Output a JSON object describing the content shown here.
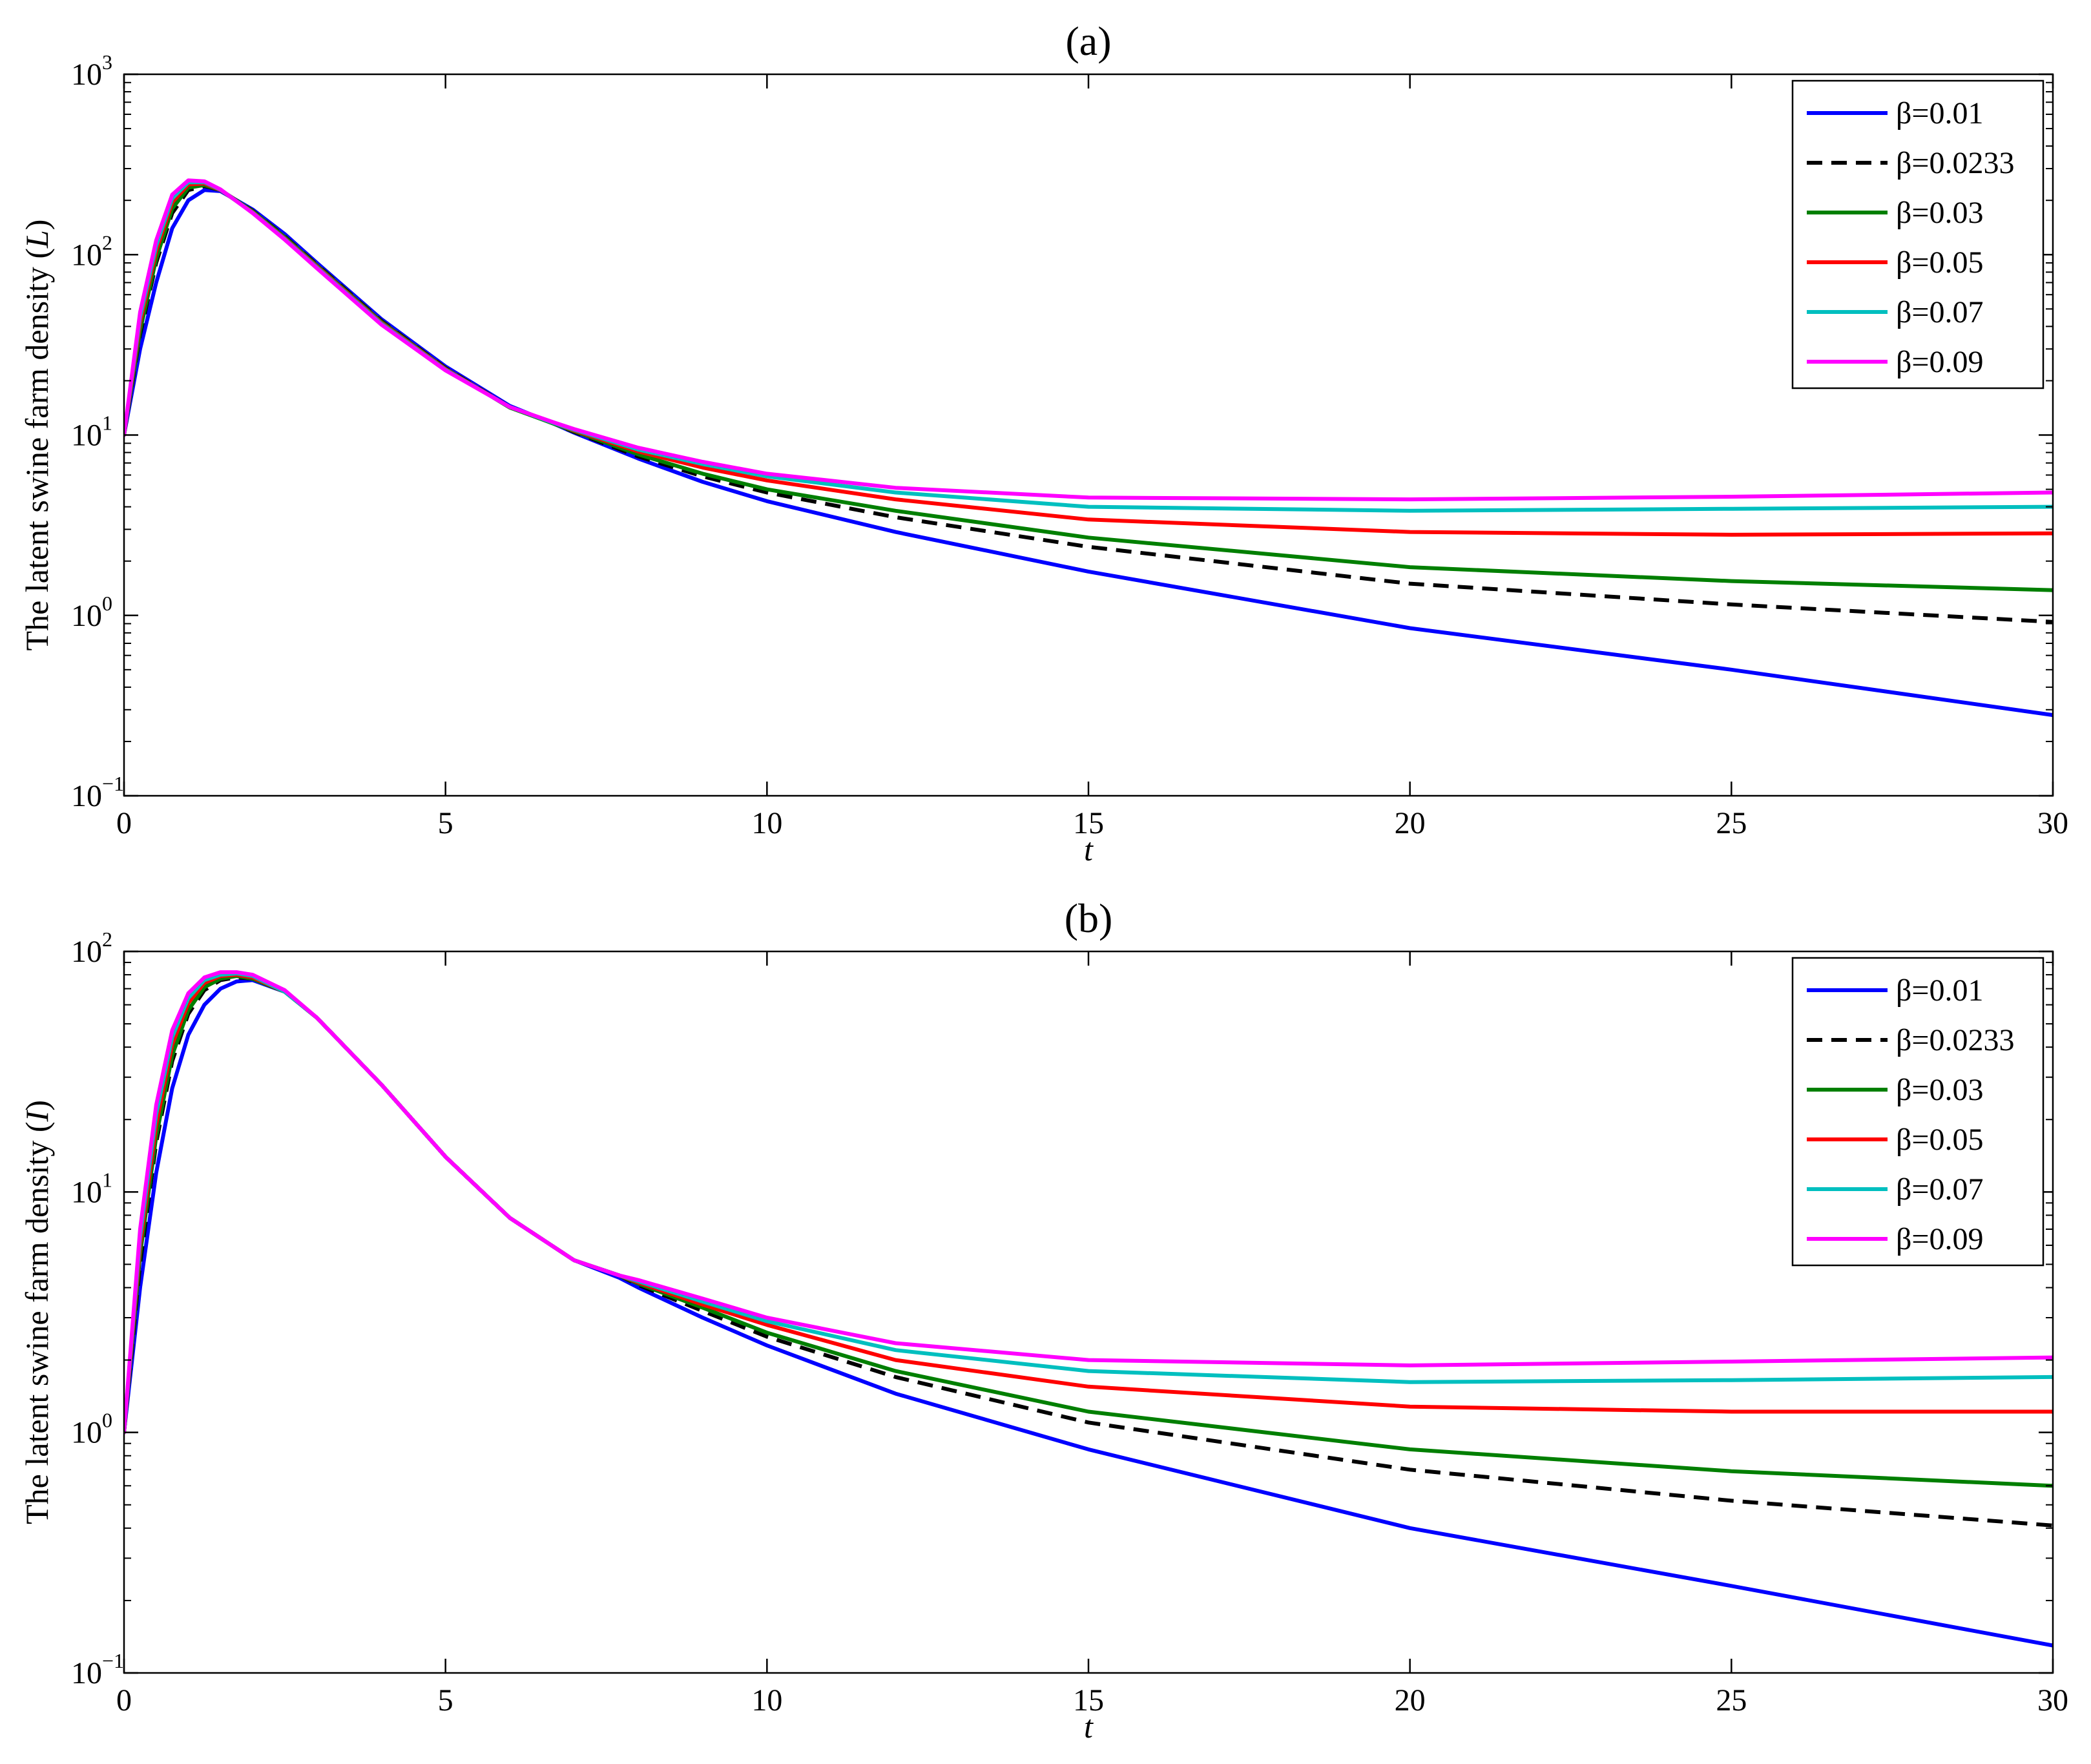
{
  "chart_data": [
    {
      "type": "line",
      "title": "(a)",
      "xlabel": "t",
      "ylabel_main": "The latent swine farm density (",
      "ylabel_var": "L",
      "ylabel_close": ")",
      "yscale": "log",
      "xlim": [
        0,
        30
      ],
      "ylim": [
        0.1,
        1000
      ],
      "xticks": [
        "0",
        "5",
        "10",
        "15",
        "20",
        "25",
        "30"
      ],
      "yticks": [
        {
          "base": "10",
          "exp": "−1"
        },
        {
          "base": "10",
          "exp": "0"
        },
        {
          "base": "10",
          "exp": "1"
        },
        {
          "base": "10",
          "exp": "2"
        },
        {
          "base": "10",
          "exp": "3"
        }
      ],
      "grid": false,
      "legend_position": "top-right",
      "series": [
        {
          "name": "β=0.01",
          "color": "#0000ff",
          "dash": "solid",
          "x": [
            0,
            0.25,
            0.5,
            0.75,
            1.0,
            1.25,
            1.5,
            2,
            2.5,
            3,
            4,
            5,
            6,
            6.7,
            7,
            8,
            9,
            10,
            12,
            15,
            20,
            25,
            30
          ],
          "y": [
            10,
            30,
            70,
            140,
            200,
            228,
            225,
            178,
            130,
            90,
            44,
            24,
            14.5,
            11.5,
            10.3,
            7.4,
            5.5,
            4.3,
            2.9,
            1.75,
            0.85,
            0.5,
            0.28
          ]
        },
        {
          "name": "β=0.0233",
          "color": "#000000",
          "dash": "dashed",
          "x": [
            0,
            0.25,
            0.5,
            0.75,
            1.0,
            1.25,
            1.5,
            2,
            2.5,
            3,
            4,
            5,
            6,
            6.7,
            7,
            8,
            9,
            10,
            12,
            15,
            20,
            25,
            30
          ],
          "y": [
            10,
            36,
            90,
            170,
            228,
            240,
            228,
            175,
            126,
            88,
            43,
            23.5,
            14.3,
            11.5,
            10.4,
            7.6,
            5.9,
            4.8,
            3.5,
            2.4,
            1.5,
            1.15,
            0.92
          ]
        },
        {
          "name": "β=0.03",
          "color": "#007f00",
          "dash": "solid",
          "x": [
            0,
            0.25,
            0.5,
            0.75,
            1.0,
            1.25,
            1.5,
            2,
            2.5,
            3,
            4,
            5,
            6,
            6.7,
            7,
            8,
            9,
            10,
            12,
            15,
            20,
            25,
            30
          ],
          "y": [
            10,
            38,
            95,
            180,
            235,
            243,
            228,
            174,
            125,
            87,
            42.5,
            23.3,
            14.2,
            11.5,
            10.5,
            7.8,
            6.1,
            5.0,
            3.8,
            2.7,
            1.85,
            1.55,
            1.38
          ]
        },
        {
          "name": "β=0.05",
          "color": "#ff0000",
          "dash": "solid",
          "x": [
            0,
            0.25,
            0.5,
            0.75,
            1.0,
            1.25,
            1.5,
            2,
            2.5,
            3,
            4,
            5,
            6,
            6.7,
            7,
            8,
            9,
            10,
            12,
            15,
            20,
            25,
            30
          ],
          "y": [
            10,
            42,
            105,
            195,
            245,
            248,
            228,
            172,
            123,
            86,
            42,
            23.2,
            14.3,
            11.6,
            10.6,
            8.1,
            6.6,
            5.6,
            4.4,
            3.4,
            2.9,
            2.8,
            2.85
          ]
        },
        {
          "name": "β=0.07",
          "color": "#00bfbf",
          "dash": "solid",
          "x": [
            0,
            0.25,
            0.5,
            0.75,
            1.0,
            1.25,
            1.5,
            2,
            2.5,
            3,
            4,
            5,
            6,
            6.7,
            7,
            8,
            9,
            10,
            12,
            15,
            20,
            25,
            30
          ],
          "y": [
            10,
            45,
            112,
            205,
            252,
            252,
            229,
            171,
            122,
            85,
            41.5,
            23,
            14.3,
            11.6,
            10.7,
            8.3,
            6.9,
            5.9,
            4.8,
            4.0,
            3.8,
            3.9,
            4.0
          ]
        },
        {
          "name": "β=0.09",
          "color": "#ff00ff",
          "dash": "solid",
          "x": [
            0,
            0.25,
            0.5,
            0.75,
            1.0,
            1.25,
            1.5,
            2,
            2.5,
            3,
            4,
            5,
            6,
            6.7,
            7,
            8,
            9,
            10,
            12,
            15,
            20,
            25,
            30
          ],
          "y": [
            10,
            48,
            120,
            215,
            258,
            255,
            230,
            170,
            121,
            84,
            41,
            22.8,
            14.3,
            11.7,
            10.8,
            8.5,
            7.1,
            6.1,
            5.1,
            4.5,
            4.4,
            4.55,
            4.8
          ]
        }
      ]
    },
    {
      "type": "line",
      "title": "(b)",
      "xlabel": "t",
      "ylabel_main": "The latent swine farm density (",
      "ylabel_var": "I",
      "ylabel_close": ")",
      "yscale": "log",
      "xlim": [
        0,
        30
      ],
      "ylim": [
        0.1,
        100
      ],
      "xticks": [
        "0",
        "5",
        "10",
        "15",
        "20",
        "25",
        "30"
      ],
      "yticks": [
        {
          "base": "10",
          "exp": "−1"
        },
        {
          "base": "10",
          "exp": "0"
        },
        {
          "base": "10",
          "exp": "1"
        },
        {
          "base": "10",
          "exp": "2"
        }
      ],
      "grid": false,
      "legend_position": "top-right",
      "series": [
        {
          "name": "β=0.01",
          "color": "#0000ff",
          "dash": "solid",
          "x": [
            0,
            0.25,
            0.5,
            0.75,
            1.0,
            1.25,
            1.5,
            1.75,
            2,
            2.5,
            3,
            4,
            5,
            6,
            7,
            7.7,
            8,
            9,
            10,
            12,
            15,
            20,
            25,
            30
          ],
          "y": [
            1,
            4,
            12,
            27,
            45,
            60,
            70,
            75,
            76,
            68,
            53,
            28,
            14,
            7.8,
            5.2,
            4.4,
            4.0,
            3.0,
            2.3,
            1.45,
            0.85,
            0.4,
            0.23,
            0.13
          ]
        },
        {
          "name": "β=0.0233",
          "color": "#000000",
          "dash": "dashed",
          "x": [
            0,
            0.25,
            0.5,
            0.75,
            1.0,
            1.25,
            1.5,
            1.75,
            2,
            2.5,
            3,
            4,
            5,
            6,
            7,
            7.7,
            8,
            9,
            10,
            12,
            15,
            20,
            25,
            30
          ],
          "y": [
            1,
            5,
            16,
            35,
            55,
            69,
            76,
            78,
            77,
            68,
            53,
            28,
            14,
            7.8,
            5.2,
            4.5,
            4.1,
            3.2,
            2.5,
            1.7,
            1.1,
            0.7,
            0.52,
            0.41
          ]
        },
        {
          "name": "β=0.03",
          "color": "#007f00",
          "dash": "solid",
          "x": [
            0,
            0.25,
            0.5,
            0.75,
            1.0,
            1.25,
            1.5,
            1.75,
            2,
            2.5,
            3,
            4,
            5,
            6,
            7,
            7.7,
            8,
            9,
            10,
            12,
            15,
            20,
            25,
            30
          ],
          "y": [
            1,
            5.5,
            17,
            37,
            57,
            71,
            77,
            79,
            77,
            68,
            53,
            28,
            14,
            7.8,
            5.2,
            4.5,
            4.15,
            3.3,
            2.6,
            1.8,
            1.22,
            0.85,
            0.69,
            0.6
          ]
        },
        {
          "name": "β=0.05",
          "color": "#ff0000",
          "dash": "solid",
          "x": [
            0,
            0.25,
            0.5,
            0.75,
            1.0,
            1.25,
            1.5,
            1.75,
            2,
            2.5,
            3,
            4,
            5,
            6,
            7,
            7.7,
            8,
            9,
            10,
            12,
            15,
            20,
            25,
            30
          ],
          "y": [
            1,
            6,
            19,
            41,
            61,
            74,
            79,
            80,
            78,
            68,
            53,
            28,
            14,
            7.8,
            5.2,
            4.5,
            4.2,
            3.4,
            2.8,
            2.0,
            1.55,
            1.28,
            1.22,
            1.22
          ]
        },
        {
          "name": "β=0.07",
          "color": "#00bfbf",
          "dash": "solid",
          "x": [
            0,
            0.25,
            0.5,
            0.75,
            1.0,
            1.25,
            1.5,
            1.75,
            2,
            2.5,
            3,
            4,
            5,
            6,
            7,
            7.7,
            8,
            9,
            10,
            12,
            15,
            20,
            25,
            30
          ],
          "y": [
            1,
            6.5,
            21,
            44,
            64,
            76,
            80,
            81,
            79,
            68,
            53,
            28,
            14,
            7.8,
            5.2,
            4.5,
            4.25,
            3.5,
            2.9,
            2.2,
            1.8,
            1.62,
            1.65,
            1.7
          ]
        },
        {
          "name": "β=0.09",
          "color": "#ff00ff",
          "dash": "solid",
          "x": [
            0,
            0.25,
            0.5,
            0.75,
            1.0,
            1.25,
            1.5,
            1.75,
            2,
            2.5,
            3,
            4,
            5,
            6,
            7,
            7.7,
            8,
            9,
            10,
            12,
            15,
            20,
            25,
            30
          ],
          "y": [
            1,
            7,
            23,
            47,
            67,
            78,
            82,
            82,
            80,
            69,
            53,
            28,
            14,
            7.8,
            5.2,
            4.5,
            4.3,
            3.6,
            3.0,
            2.35,
            2.0,
            1.9,
            1.97,
            2.05
          ]
        }
      ]
    }
  ]
}
